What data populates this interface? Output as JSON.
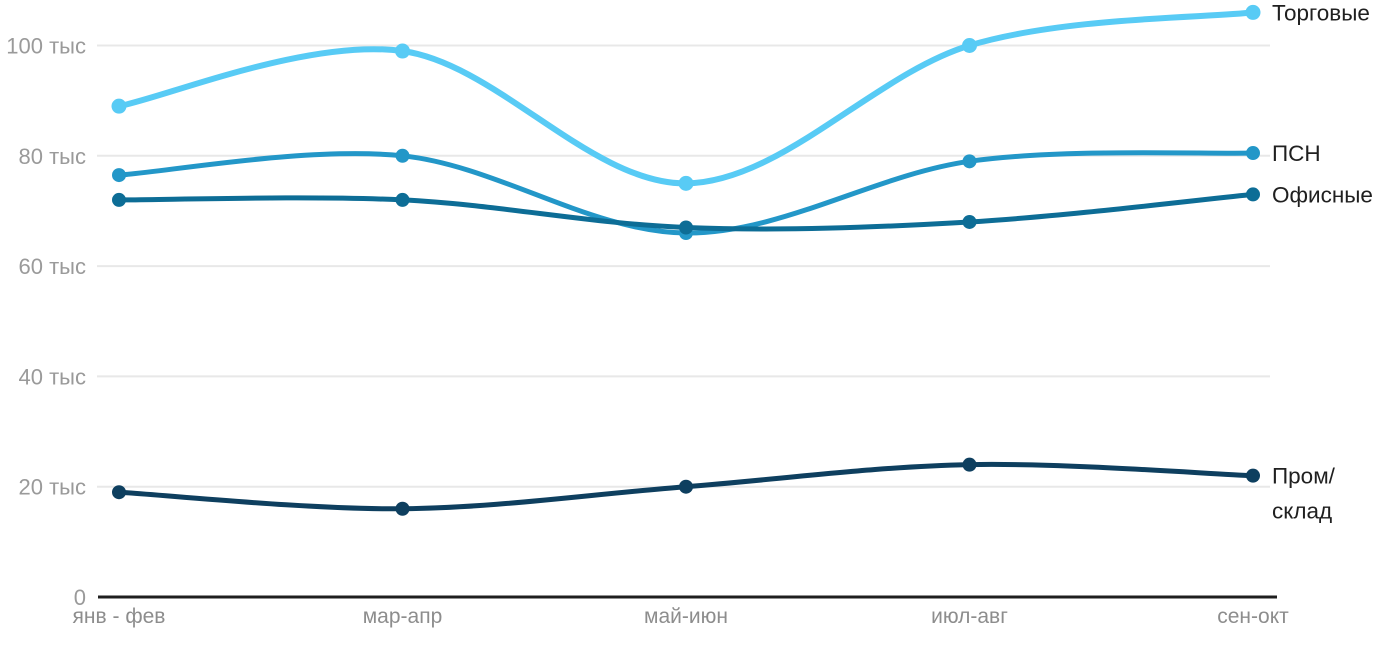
{
  "chart_data": {
    "type": "line",
    "smooth": true,
    "categories": [
      "янв - фев",
      "мар-апр",
      "май-июн",
      "июл-авг",
      "сен-окт"
    ],
    "series": [
      {
        "name": "Торговые",
        "values": [
          89,
          99,
          75,
          100,
          106
        ],
        "color": "#58cbf5",
        "label_lines": [
          "Торговые"
        ]
      },
      {
        "name": "ПСН",
        "values": [
          76.5,
          80,
          66,
          79,
          80.5
        ],
        "color": "#2397c8",
        "label_lines": [
          "ПСН"
        ]
      },
      {
        "name": "Офисные",
        "values": [
          72,
          72,
          67,
          68,
          73
        ],
        "color": "#0d6d96",
        "label_lines": [
          "Офисные"
        ]
      },
      {
        "name": "Пром/склад",
        "values": [
          19,
          16,
          20,
          24,
          22
        ],
        "color": "#0e3f5f",
        "label_lines": [
          "Пром/",
          "склад"
        ]
      }
    ],
    "ylim": [
      0,
      110
    ],
    "yticks": [
      0,
      20,
      40,
      60,
      80,
      100
    ],
    "ytick_labels": [
      "0",
      "20 тыс",
      "40 тыс",
      "60 тыс",
      "80 тыс",
      "100 тыс"
    ],
    "grid": true,
    "legend_position": "right-inline-labels",
    "colors": {
      "grid_line": "#e8e8e8",
      "axis_line": "#1f1f1f",
      "ytick_label": "#9a9a9a",
      "xtick_label": "#8d8d8d",
      "series_label": "#202020",
      "background": "#ffffff"
    }
  }
}
